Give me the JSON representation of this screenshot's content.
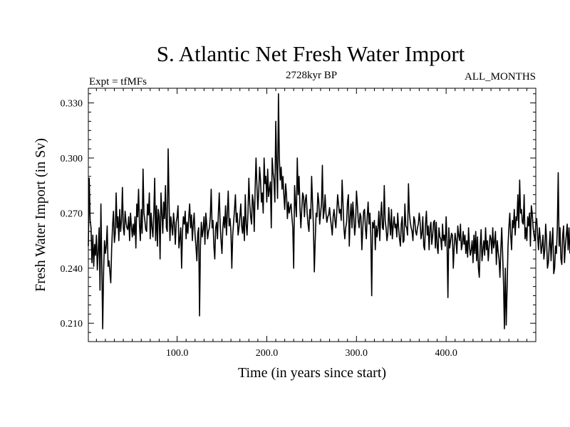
{
  "header": {
    "title": "S. Atlantic Net Fresh Water Import",
    "subtitle": "2728kyr BP",
    "expt_label": "Expt = tfMFs",
    "months_label": "ALL_MONTHS"
  },
  "colors": {
    "line": "#000000",
    "background": "#ffffff"
  },
  "chart_data": {
    "type": "line",
    "title": "S. Atlantic Net Fresh Water Import",
    "subtitle": "2728kyr BP",
    "xlabel": "Time (in years since start)",
    "ylabel": "Fresh Water Import (in Sv)",
    "xlim": [
      1,
      500
    ],
    "ylim": [
      0.2,
      0.338
    ],
    "xticks": [
      100,
      200,
      300,
      400
    ],
    "xtick_labels": [
      "100.0",
      "200.0",
      "300.0",
      "400.0"
    ],
    "yticks": [
      0.21,
      0.24,
      0.27,
      0.3,
      0.33
    ],
    "ytick_labels": [
      "0.210",
      "0.240",
      "0.270",
      "0.300",
      "0.330"
    ],
    "grid": false,
    "series": [
      {
        "name": "Fresh Water Import",
        "x_start": 1,
        "x_step": 1,
        "values": [
          0.252,
          0.289,
          0.266,
          0.262,
          0.243,
          0.258,
          0.241,
          0.253,
          0.247,
          0.258,
          0.239,
          0.249,
          0.262,
          0.228,
          0.275,
          0.242,
          0.207,
          0.238,
          0.255,
          0.248,
          0.252,
          0.263,
          0.241,
          0.244,
          0.238,
          0.232,
          0.251,
          0.263,
          0.271,
          0.254,
          0.259,
          0.281,
          0.262,
          0.268,
          0.255,
          0.272,
          0.26,
          0.266,
          0.284,
          0.262,
          0.258,
          0.271,
          0.265,
          0.262,
          0.261,
          0.268,
          0.255,
          0.27,
          0.263,
          0.257,
          0.264,
          0.258,
          0.268,
          0.251,
          0.275,
          0.268,
          0.283,
          0.264,
          0.255,
          0.272,
          0.259,
          0.294,
          0.27,
          0.266,
          0.261,
          0.26,
          0.275,
          0.269,
          0.281,
          0.256,
          0.27,
          0.262,
          0.257,
          0.27,
          0.289,
          0.255,
          0.274,
          0.252,
          0.272,
          0.268,
          0.245,
          0.281,
          0.27,
          0.259,
          0.276,
          0.267,
          0.285,
          0.262,
          0.26,
          0.305,
          0.276,
          0.255,
          0.268,
          0.263,
          0.258,
          0.27,
          0.264,
          0.253,
          0.265,
          0.268,
          0.274,
          0.251,
          0.256,
          0.262,
          0.24,
          0.26,
          0.268,
          0.264,
          0.271,
          0.256,
          0.265,
          0.259,
          0.268,
          0.275,
          0.262,
          0.269,
          0.255,
          0.264,
          0.27,
          0.258,
          0.252,
          0.244,
          0.259,
          0.262,
          0.214,
          0.252,
          0.265,
          0.257,
          0.261,
          0.268,
          0.253,
          0.27,
          0.264,
          0.256,
          0.26,
          0.262,
          0.268,
          0.283,
          0.262,
          0.266,
          0.252,
          0.245,
          0.262,
          0.265,
          0.256,
          0.27,
          0.281,
          0.264,
          0.255,
          0.248,
          0.262,
          0.268,
          0.262,
          0.274,
          0.258,
          0.27,
          0.282,
          0.263,
          0.267,
          0.26,
          0.24,
          0.258,
          0.265,
          0.272,
          0.28,
          0.265,
          0.27,
          0.258,
          0.262,
          0.268,
          0.275,
          0.263,
          0.259,
          0.268,
          0.255,
          0.28,
          0.264,
          0.258,
          0.27,
          0.289,
          0.275,
          0.268,
          0.264,
          0.28,
          0.276,
          0.26,
          0.283,
          0.3,
          0.285,
          0.272,
          0.281,
          0.295,
          0.288,
          0.276,
          0.281,
          0.27,
          0.3,
          0.286,
          0.29,
          0.276,
          0.294,
          0.279,
          0.283,
          0.287,
          0.262,
          0.3,
          0.292,
          0.288,
          0.276,
          0.32,
          0.296,
          0.278,
          0.335,
          0.3,
          0.288,
          0.295,
          0.283,
          0.29,
          0.28,
          0.272,
          0.286,
          0.28,
          0.267,
          0.276,
          0.27,
          0.273,
          0.275,
          0.268,
          0.262,
          0.24,
          0.285,
          0.275,
          0.268,
          0.3,
          0.28,
          0.29,
          0.273,
          0.262,
          0.272,
          0.281,
          0.279,
          0.268,
          0.277,
          0.28,
          0.27,
          0.264,
          0.26,
          0.272,
          0.267,
          0.29,
          0.276,
          0.263,
          0.238,
          0.255,
          0.27,
          0.268,
          0.281,
          0.276,
          0.264,
          0.27,
          0.275,
          0.296,
          0.267,
          0.271,
          0.28,
          0.27,
          0.265,
          0.268,
          0.269,
          0.273,
          0.267,
          0.263,
          0.258,
          0.268,
          0.272,
          0.266,
          0.262,
          0.27,
          0.28,
          0.275,
          0.27,
          0.272,
          0.266,
          0.288,
          0.275,
          0.262,
          0.256,
          0.262,
          0.265,
          0.276,
          0.28,
          0.252,
          0.268,
          0.275,
          0.262,
          0.276,
          0.268,
          0.258,
          0.264,
          0.282,
          0.275,
          0.266,
          0.262,
          0.27,
          0.268,
          0.25,
          0.261,
          0.271,
          0.272,
          0.262,
          0.256,
          0.268,
          0.276,
          0.264,
          0.27,
          0.258,
          0.225,
          0.265,
          0.262,
          0.266,
          0.25,
          0.263,
          0.257,
          0.262,
          0.271,
          0.255,
          0.268,
          0.276,
          0.262,
          0.261,
          0.285,
          0.266,
          0.262,
          0.255,
          0.259,
          0.273,
          0.265,
          0.258,
          0.272,
          0.256,
          0.263,
          0.268,
          0.262,
          0.264,
          0.257,
          0.27,
          0.262,
          0.256,
          0.252,
          0.264,
          0.268,
          0.254,
          0.255,
          0.275,
          0.263,
          0.262,
          0.258,
          0.286,
          0.27,
          0.265,
          0.262,
          0.26,
          0.255,
          0.268,
          0.266,
          0.26,
          0.258,
          0.262,
          0.264,
          0.27,
          0.265,
          0.256,
          0.259,
          0.268,
          0.252,
          0.25,
          0.264,
          0.271,
          0.258,
          0.263,
          0.25,
          0.262,
          0.265,
          0.253,
          0.258,
          0.265,
          0.266,
          0.251,
          0.265,
          0.252,
          0.248,
          0.262,
          0.257,
          0.256,
          0.25,
          0.264,
          0.255,
          0.258,
          0.252,
          0.268,
          0.254,
          0.224,
          0.262,
          0.251,
          0.255,
          0.259,
          0.258,
          0.24,
          0.252,
          0.259,
          0.255,
          0.248,
          0.263,
          0.258,
          0.255,
          0.264,
          0.25,
          0.253,
          0.26,
          0.253,
          0.258,
          0.248,
          0.255,
          0.246,
          0.262,
          0.252,
          0.247,
          0.25,
          0.255,
          0.243,
          0.258,
          0.248,
          0.26,
          0.244,
          0.257,
          0.24,
          0.235,
          0.252,
          0.261,
          0.244,
          0.25,
          0.255,
          0.247,
          0.262,
          0.25,
          0.255,
          0.244,
          0.252,
          0.258,
          0.256,
          0.248,
          0.262,
          0.251,
          0.254,
          0.26,
          0.242,
          0.255,
          0.249,
          0.245,
          0.235,
          0.25,
          0.262,
          0.248,
          0.232,
          0.207,
          0.24,
          0.209,
          0.229,
          0.252,
          0.262,
          0.27,
          0.258,
          0.25,
          0.266,
          0.262,
          0.272,
          0.258,
          0.268,
          0.266,
          0.28,
          0.262,
          0.288,
          0.27,
          0.272,
          0.265,
          0.264,
          0.28,
          0.256,
          0.262,
          0.255,
          0.268,
          0.263,
          0.27,
          0.252,
          0.274,
          0.27,
          0.262,
          0.258,
          0.255,
          0.265,
          0.267,
          0.258,
          0.25,
          0.262,
          0.256,
          0.248,
          0.252,
          0.258,
          0.245,
          0.25,
          0.264,
          0.256,
          0.24,
          0.243,
          0.252,
          0.26,
          0.244,
          0.254,
          0.262,
          0.237,
          0.24,
          0.252,
          0.248,
          0.262,
          0.292,
          0.252,
          0.262,
          0.245,
          0.242,
          0.258,
          0.263,
          0.243,
          0.252,
          0.258,
          0.264,
          0.25,
          0.262,
          0.248
        ]
      }
    ]
  }
}
